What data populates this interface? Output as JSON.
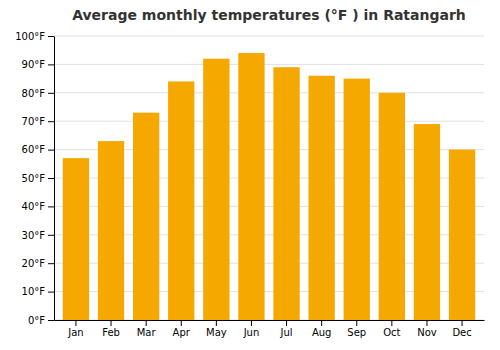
{
  "chart_data": {
    "type": "bar",
    "title": "Average monthly temperatures (°F ) in Ratangarh",
    "categories": [
      "Jan",
      "Feb",
      "Mar",
      "Apr",
      "May",
      "Jun",
      "Jul",
      "Aug",
      "Sep",
      "Oct",
      "Nov",
      "Dec"
    ],
    "values": [
      57,
      63,
      73,
      84,
      92,
      94,
      89,
      86,
      85,
      80,
      69,
      60
    ],
    "color": "#F5A800",
    "ylim": [
      0,
      100
    ],
    "yticks": [
      {
        "value": 0,
        "label": "0°F"
      },
      {
        "value": 10,
        "label": "10°F"
      },
      {
        "value": 20,
        "label": "20°F"
      },
      {
        "value": 30,
        "label": "30°F"
      },
      {
        "value": 40,
        "label": "40°F"
      },
      {
        "value": 50,
        "label": "50°F"
      },
      {
        "value": 60,
        "label": "60°F"
      },
      {
        "value": 70,
        "label": "70°F"
      },
      {
        "value": 80,
        "label": "80°F"
      },
      {
        "value": 90,
        "label": "90°F"
      },
      {
        "value": 100,
        "label": "100°F"
      }
    ],
    "grid": true
  }
}
